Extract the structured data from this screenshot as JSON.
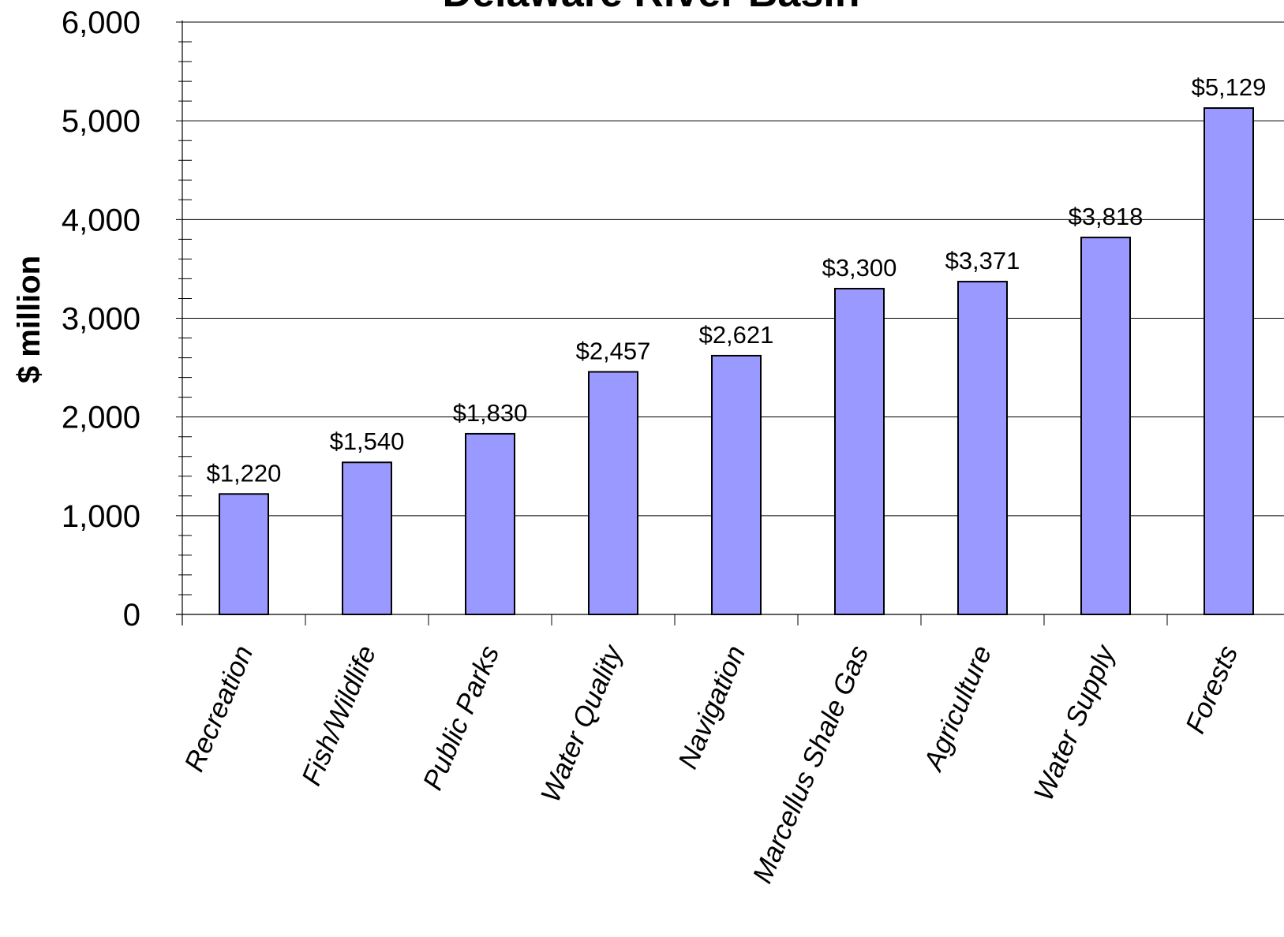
{
  "chart_data": {
    "type": "bar",
    "title": "Delaware River Basin",
    "xlabel": "",
    "ylabel": "$ million",
    "ylim": [
      0,
      6000
    ],
    "yticks": [
      0,
      1000,
      2000,
      3000,
      4000,
      5000,
      6000
    ],
    "ytick_labels": [
      "0",
      "1,000",
      "2,000",
      "3,000",
      "4,000",
      "5,000",
      "6,000"
    ],
    "categories": [
      "Recreation",
      "Fish/Wildlife",
      "Public Parks",
      "Water Quality",
      "Navigation",
      "Marcellus Shale Gas",
      "Agriculture",
      "Water Supply",
      "Forests"
    ],
    "values": [
      1220,
      1540,
      1830,
      2457,
      2621,
      3300,
      3371,
      3818,
      5129
    ],
    "data_labels": [
      "$1,220",
      "$1,540",
      "$1,830",
      "$2,457",
      "$2,621",
      "$3,300",
      "$3,371",
      "$3,818",
      "$5,129"
    ],
    "grid": true,
    "legend": "none",
    "colors": {
      "bar_fill": "#9999ff",
      "bar_stroke": "#000000",
      "gridline": "#000000",
      "axis": "#000000",
      "background": "#ffffff"
    }
  }
}
